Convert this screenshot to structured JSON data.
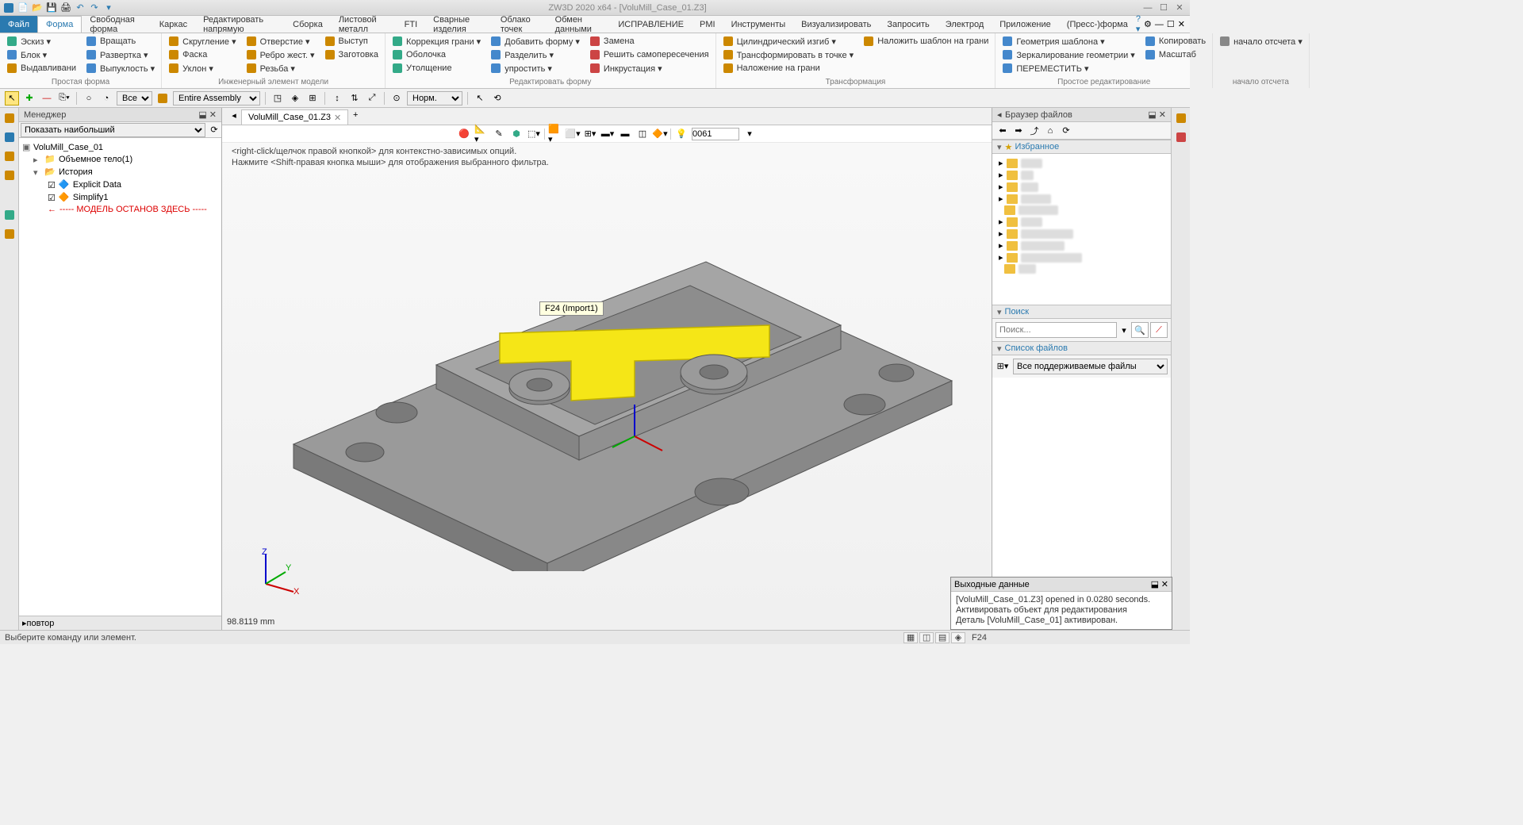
{
  "title": "ZW3D 2020 x64 - [VoluMill_Case_01.Z3]",
  "menu": {
    "file": "Файл",
    "tabs": [
      "Форма",
      "Свободная форма",
      "Каркас",
      "Редактировать напрямую",
      "Сборка",
      "Листовой металл",
      "FTI",
      "Сварные изделия",
      "Облако точек",
      "Обмен данными",
      "ИСПРАВЛЕНИЕ",
      "PMI",
      "Инструменты",
      "Визуализировать",
      "Запросить",
      "Электрод",
      "Приложение",
      "(Пресс-)форма"
    ],
    "active": 0
  },
  "ribbon": {
    "groups": [
      {
        "label": "Простая форма",
        "cmds": [
          [
            "Эскиз ▾",
            "#3a8"
          ],
          [
            "Блок ▾",
            "#48c"
          ],
          [
            "Выдавливани",
            "#c80"
          ],
          [
            "Вращать",
            "#48c"
          ],
          [
            "Развертка ▾",
            "#48c"
          ],
          [
            "Выпуклость ▾",
            "#48c"
          ]
        ]
      },
      {
        "label": "Инженерный элемент модели",
        "cmds": [
          [
            "Скругление ▾",
            "#c80"
          ],
          [
            "Фаска",
            "#c80"
          ],
          [
            "Уклон ▾",
            "#c80"
          ],
          [
            "Отверстие ▾",
            "#c80"
          ],
          [
            "Ребро жест. ▾",
            "#c80"
          ],
          [
            "Резьба ▾",
            "#c80"
          ],
          [
            "Выступ",
            "#c80"
          ],
          [
            "Заготовка",
            "#c80"
          ]
        ]
      },
      {
        "label": "Редактировать форму",
        "cmds": [
          [
            "Коррекция грани ▾",
            "#3a8"
          ],
          [
            "Оболочка",
            "#3a8"
          ],
          [
            "Утолщение",
            "#3a8"
          ],
          [
            "Добавить форму ▾",
            "#48c"
          ],
          [
            "Разделить ▾",
            "#48c"
          ],
          [
            "упростить ▾",
            "#48c"
          ],
          [
            "Замена",
            "#c44"
          ],
          [
            "Решить самопересечения",
            "#c44"
          ],
          [
            "Инкрустация ▾",
            "#c44"
          ]
        ]
      },
      {
        "label": "Трансформация",
        "cmds": [
          [
            "Цилиндрический изгиб ▾",
            "#c80"
          ],
          [
            "Трансформировать в точке ▾",
            "#c80"
          ],
          [
            "Наложение на грани",
            "#c80"
          ],
          [
            "Наложить шаблон на грани",
            "#c80"
          ]
        ]
      },
      {
        "label": "Простое редактирование",
        "cmds": [
          [
            "Геометрия шаблона ▾",
            "#48c"
          ],
          [
            "Зеркалирование геометрии ▾",
            "#48c"
          ],
          [
            "ПЕРЕМЕСТИТЬ ▾",
            "#48c"
          ],
          [
            "Копировать",
            "#48c"
          ],
          [
            "Масштаб",
            "#48c"
          ]
        ]
      },
      {
        "label": "начало отсчета",
        "cmds": [
          [
            "начало отсчета ▾",
            "#888"
          ]
        ]
      }
    ]
  },
  "toolbar2": {
    "filter1": "Все",
    "filter2": "Entire Assembly",
    "mode": "Норм."
  },
  "leftPanel": {
    "title": "Менеджер",
    "dropdown": "Показать наибольший",
    "tree": {
      "root": "VoluMill_Case_01",
      "body": "Объемное тело(1)",
      "history": "История",
      "items": [
        "Explicit Data",
        "Simplify1"
      ],
      "stop": "----- МОДЕЛЬ ОСТАНОВ ЗДЕСЬ -----"
    },
    "footer": "повтор"
  },
  "docTab": "VoluMill_Case_01.Z3",
  "viewport": {
    "hint1": "<right-click/щелчок правой кнопкой> для контекстно-зависимых опций.",
    "hint2": "Нажмите <Shift-правая кнопка мыши> для отображения выбранного фильтра.",
    "tooltip": "F24 (Import1)",
    "layer": "0061",
    "coord": "98.8119 mm",
    "model": {
      "body_fill": "#9a9a9a",
      "body_stroke": "#555",
      "highlight_fill": "#f5e617",
      "highlight_stroke": "#c0b000"
    }
  },
  "rightPanel": {
    "title": "Браузер файлов",
    "fav": "Избранное",
    "search": "Поиск",
    "searchPlaceholder": "Поиск...",
    "fileList": "Список файлов",
    "fileTypes": "Все поддерживаемые файлы"
  },
  "output": {
    "title": "Выходные данные",
    "line1": "[VoluMill_Case_01.Z3] opened in 0.0280 seconds.",
    "line2": "Активировать объект для редактирования",
    "line3": "Деталь [VoluMill_Case_01] активирован."
  },
  "status": {
    "hint": "Выберите команду или элемент.",
    "sel": "F24"
  }
}
